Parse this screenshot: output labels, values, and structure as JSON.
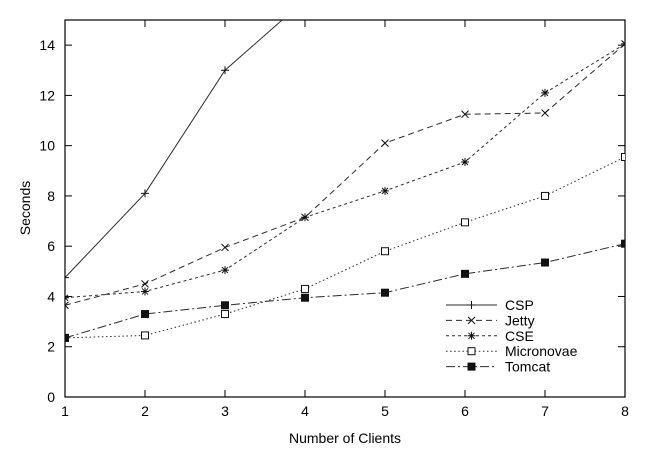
{
  "figure": {
    "background": "#ffffff",
    "frame_color": "#000000",
    "line_color": "#2b2b2b",
    "marker_color": "#111111",
    "text_color": "#000000"
  },
  "chart_data": {
    "type": "line",
    "title": "",
    "xlabel": "Number of Clients",
    "ylabel": "Seconds",
    "x": [
      1,
      2,
      3,
      4,
      5,
      6,
      7,
      8
    ],
    "xlim": [
      1,
      8
    ],
    "ylim": [
      0,
      15
    ],
    "xticks": [
      1,
      2,
      3,
      4,
      5,
      6,
      7,
      8
    ],
    "yticks": [
      0,
      2,
      4,
      6,
      8,
      10,
      12,
      14
    ],
    "grid": false,
    "legend_position": "inside-right-middle",
    "legend_entries": [
      "CSP",
      "Jetty",
      "CSE",
      "Micronovae",
      "Tomcat"
    ],
    "series": [
      {
        "name": "CSP",
        "line_style": "solid",
        "marker": "plus",
        "values": [
          4.75,
          8.1,
          13.0,
          15.8,
          null,
          null,
          null,
          null
        ],
        "clipped_at_top": true
      },
      {
        "name": "Jetty",
        "line_style": "dashed",
        "marker": "cross",
        "values": [
          3.65,
          4.5,
          5.95,
          7.15,
          10.1,
          11.25,
          11.3,
          14.05
        ]
      },
      {
        "name": "CSE",
        "line_style": "fine-dashed",
        "marker": "asterisk",
        "values": [
          3.95,
          4.2,
          5.05,
          7.15,
          8.2,
          9.35,
          12.1,
          14.05
        ]
      },
      {
        "name": "Micronovae",
        "line_style": "dotted",
        "marker": "open-square",
        "values": [
          2.35,
          2.45,
          3.3,
          4.3,
          5.8,
          6.95,
          8.0,
          9.55
        ]
      },
      {
        "name": "Tomcat",
        "line_style": "dash-dot",
        "marker": "filled-square",
        "values": [
          2.35,
          3.3,
          3.65,
          3.95,
          4.15,
          4.9,
          5.35,
          6.1
        ]
      }
    ]
  }
}
